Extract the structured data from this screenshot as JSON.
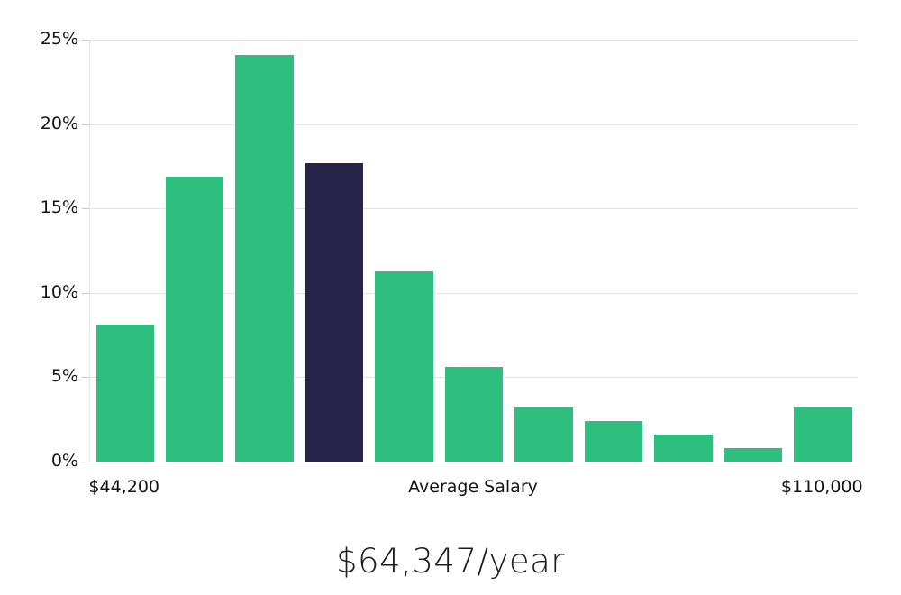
{
  "chart_data": {
    "type": "bar",
    "title": "$64,347/year",
    "values": [
      8.1,
      16.9,
      24.1,
      17.7,
      11.3,
      5.6,
      3.2,
      2.4,
      1.6,
      0.8,
      3.2
    ],
    "bar_color": "#2ebf7e",
    "highlight_index": 3,
    "highlight_color": "#282348",
    "ylim": [
      0,
      25
    ],
    "yticks": [
      0,
      5,
      10,
      15,
      20,
      25
    ],
    "ytick_labels": [
      "0%",
      "5%",
      "10%",
      "15%",
      "20%",
      "25%"
    ],
    "x_axis_labels": {
      "left": "$44,200",
      "center": "Average Salary",
      "right": "$110,000"
    },
    "grid": true,
    "legend": "none"
  }
}
